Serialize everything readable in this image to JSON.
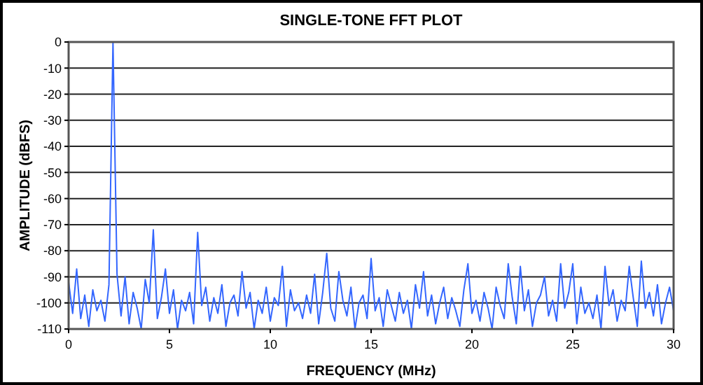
{
  "chart_data": {
    "type": "line",
    "title": "SINGLE-TONE FFT PLOT",
    "xlabel": "FREQUENCY (MHz)",
    "ylabel": "AMPLITUDE (dBFS)",
    "xlim": [
      0,
      30
    ],
    "xticks": [
      0,
      5,
      10,
      15,
      20,
      25,
      30
    ],
    "ylim": [
      -110,
      0
    ],
    "yticks": [
      -110,
      -100,
      -90,
      -80,
      -70,
      -60,
      -50,
      -40,
      -30,
      -20,
      -10,
      0
    ],
    "grid": "y",
    "series": [
      {
        "color": "#3366ff",
        "x": [
          0,
          0.2,
          0.4,
          0.6,
          0.8,
          1,
          1.2,
          1.4,
          1.6,
          1.8,
          2,
          2.2,
          2.4,
          2.6,
          2.8,
          3,
          3.2,
          3.4,
          3.6,
          3.8,
          4,
          4.2,
          4.4,
          4.6,
          4.8,
          5,
          5.2,
          5.4,
          5.6,
          5.8,
          6,
          6.2,
          6.4,
          6.6,
          6.8,
          7,
          7.2,
          7.4,
          7.6,
          7.8,
          8,
          8.2,
          8.4,
          8.6,
          8.8,
          9,
          9.2,
          9.4,
          9.6,
          9.8,
          10,
          10.2,
          10.4,
          10.6,
          10.8,
          11,
          11.2,
          11.4,
          11.6,
          11.8,
          12,
          12.2,
          12.4,
          12.6,
          12.8,
          13,
          13.2,
          13.4,
          13.6,
          13.8,
          14,
          14.2,
          14.4,
          14.6,
          14.8,
          15,
          15.2,
          15.4,
          15.6,
          15.8,
          16,
          16.2,
          16.4,
          16.6,
          16.8,
          17,
          17.2,
          17.4,
          17.6,
          17.8,
          18,
          18.2,
          18.4,
          18.6,
          18.8,
          19,
          19.2,
          19.4,
          19.6,
          19.8,
          20,
          20.2,
          20.4,
          20.6,
          20.8,
          21,
          21.2,
          21.4,
          21.6,
          21.8,
          22,
          22.2,
          22.4,
          22.6,
          22.8,
          23,
          23.2,
          23.4,
          23.6,
          23.8,
          24,
          24.2,
          24.4,
          24.6,
          24.8,
          25,
          25.2,
          25.4,
          25.6,
          25.8,
          26,
          26.2,
          26.4,
          26.6,
          26.8,
          27,
          27.2,
          27.4,
          27.6,
          27.8,
          28,
          28.2,
          28.4,
          28.6,
          28.8,
          29,
          29.2,
          29.4,
          29.6,
          29.8,
          30
        ],
        "values": [
          -92,
          -104,
          -87,
          -106,
          -97,
          -109,
          -95,
          -103,
          -99,
          -107,
          -93,
          0,
          -89,
          -105,
          -90,
          -108,
          -96,
          -102,
          -110,
          -91,
          -100,
          -72,
          -106,
          -98,
          -87,
          -104,
          -95,
          -110,
          -99,
          -103,
          -96,
          -108,
          -73,
          -101,
          -94,
          -107,
          -98,
          -104,
          -93,
          -109,
          -100,
          -97,
          -105,
          -88,
          -102,
          -96,
          -110,
          -99,
          -104,
          -94,
          -107,
          -98,
          -101,
          -86,
          -109,
          -95,
          -103,
          -100,
          -106,
          -97,
          -104,
          -89,
          -108,
          -96,
          -81,
          -102,
          -107,
          -88,
          -99,
          -105,
          -94,
          -110,
          -100,
          -97,
          -106,
          -83,
          -103,
          -98,
          -109,
          -95,
          -101,
          -107,
          -96,
          -104,
          -99,
          -110,
          -93,
          -102,
          -88,
          -105,
          -97,
          -108,
          -100,
          -94,
          -106,
          -98,
          -103,
          -109,
          -95,
          -85,
          -104,
          -99,
          -107,
          -96,
          -102,
          -110,
          -94,
          -101,
          -106,
          -85,
          -98,
          -108,
          -86,
          -103,
          -95,
          -109,
          -100,
          -97,
          -90,
          -105,
          -99,
          -107,
          -85,
          -102,
          -96,
          -85,
          -108,
          -94,
          -104,
          -100,
          -106,
          -97,
          -110,
          -86,
          -101,
          -95,
          -107,
          -99,
          -103,
          -86,
          -98,
          -109,
          -84,
          -102,
          -96,
          -105,
          -93,
          -108,
          -100,
          -94,
          -103
        ]
      }
    ]
  }
}
